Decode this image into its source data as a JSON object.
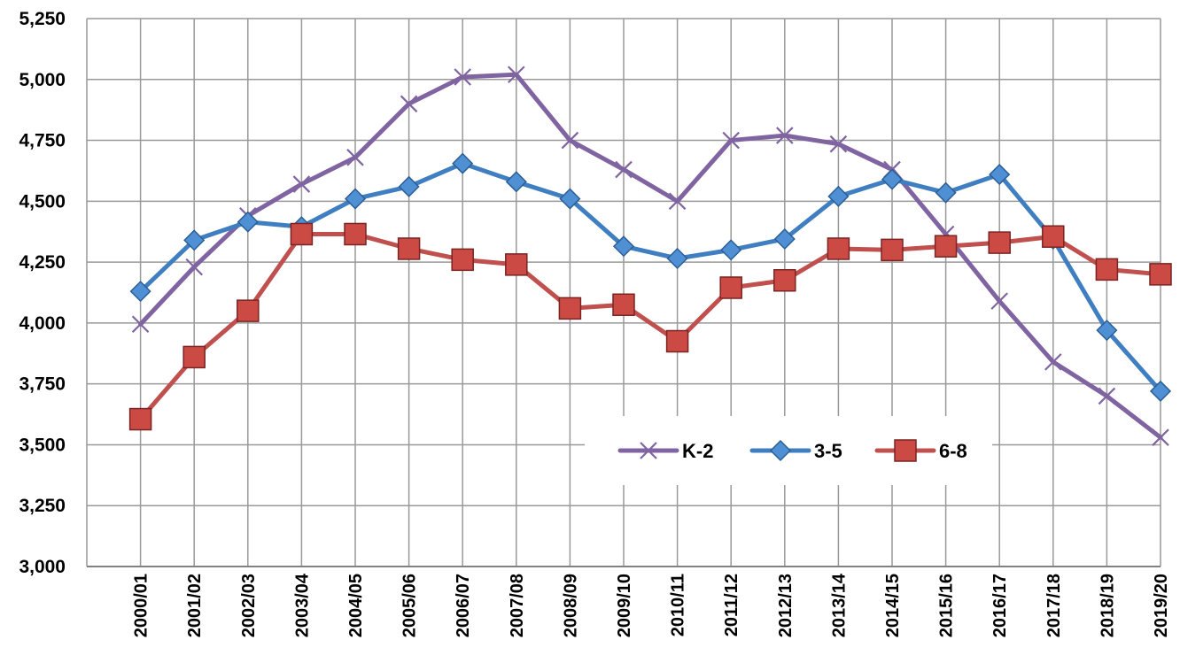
{
  "chart_data": {
    "type": "line",
    "title": "",
    "xlabel": "",
    "ylabel": "",
    "ylim": [
      3000,
      5250
    ],
    "yticks": [
      3000,
      3250,
      3500,
      3750,
      4000,
      4250,
      4500,
      4750,
      5000,
      5250
    ],
    "ytick_labels": [
      "3,000",
      "3,250",
      "3,500",
      "3,750",
      "4,000",
      "4,250",
      "4,500",
      "4,750",
      "5,000",
      "5,250"
    ],
    "grid": true,
    "legend_position": "lower-right inside",
    "categories": [
      "2000/01",
      "2001/02",
      "2002/03",
      "2003/04",
      "2004/05",
      "2005/06",
      "2006/07",
      "2007/08",
      "2008/09",
      "2009/10",
      "2010/11",
      "2011/12",
      "2012/13",
      "2013/14",
      "2014/15",
      "2015/16",
      "2016/17",
      "2017/18",
      "2018/19",
      "2019/20"
    ],
    "series": [
      {
        "name": "K-2",
        "color": "#8064a2",
        "marker": "x",
        "values": [
          3995,
          4230,
          4440,
          4570,
          4680,
          4900,
          5010,
          5020,
          4750,
          4630,
          4500,
          4750,
          4770,
          4735,
          4630,
          4365,
          4090,
          3840,
          3700,
          3530
        ]
      },
      {
        "name": "3-5",
        "color": "#3f7fc1",
        "marker": "diamond",
        "values": [
          4130,
          4340,
          4415,
          4395,
          4510,
          4560,
          4655,
          4580,
          4510,
          4315,
          4265,
          4300,
          4345,
          4520,
          4590,
          4535,
          4610,
          4345,
          3970,
          3720
        ]
      },
      {
        "name": "6-8",
        "color": "#c0504d",
        "marker": "square",
        "values": [
          3605,
          3860,
          4050,
          4365,
          4365,
          4305,
          4260,
          4240,
          4060,
          4075,
          3925,
          4145,
          4175,
          4305,
          4300,
          4315,
          4330,
          4355,
          4220,
          4200
        ]
      }
    ]
  }
}
